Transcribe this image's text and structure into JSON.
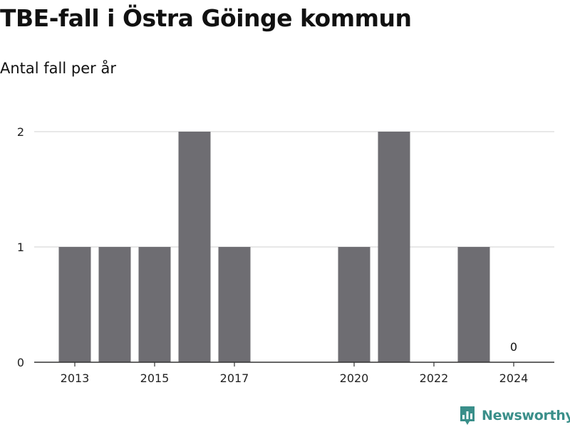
{
  "title": "TBE-fall i Östra Göinge kommun",
  "subtitle": "Antal fall per år",
  "brand": {
    "name": "Newsworthy",
    "color": "#3a8f8a"
  },
  "colors": {
    "bar": "#6e6d72",
    "grid": "#d9d9d9",
    "axis": "#333333"
  },
  "chart_data": {
    "type": "bar",
    "categories": [
      "2013",
      "2014",
      "2015",
      "2016",
      "2017",
      "2018",
      "2019",
      "2020",
      "2021",
      "2022",
      "2023",
      "2024"
    ],
    "values": [
      1,
      1,
      1,
      2,
      1,
      0,
      0,
      1,
      2,
      0,
      1,
      0
    ],
    "x_tick_labels": [
      "2013",
      "2015",
      "2017",
      "2020",
      "2022",
      "2024"
    ],
    "y_ticks": [
      0,
      1,
      2
    ],
    "ylim": [
      0,
      2
    ],
    "annotations": [
      {
        "category": "2024",
        "text": "0"
      }
    ],
    "xlabel": "",
    "ylabel": "",
    "grid": true,
    "legend": false
  }
}
